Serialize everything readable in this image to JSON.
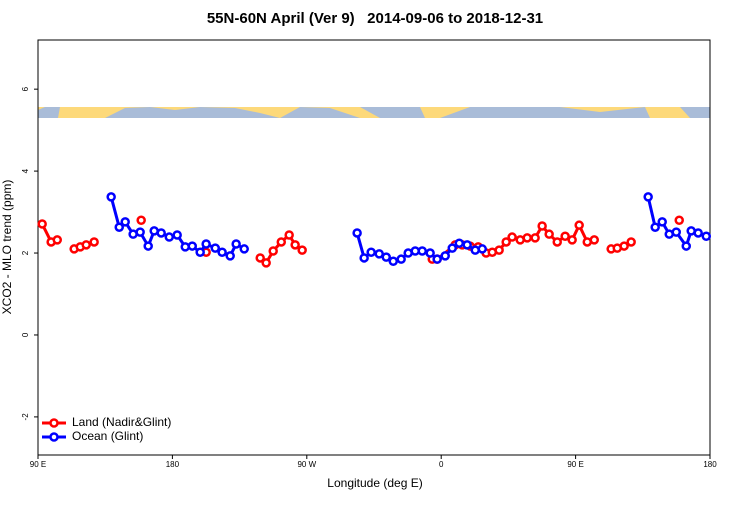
{
  "chart_data": {
    "type": "line",
    "title": "55N-60N April (Ver 9)   2014-09-06 to 2018-12-31",
    "x_label": "Longitude (deg E)",
    "y_label": "XCO2 - MLO trend (ppm)",
    "xlim": [
      -270,
      180
    ],
    "xticks": [
      {
        "value": -270,
        "label": "90 E"
      },
      {
        "value": -180,
        "label": "180"
      },
      {
        "value": -90,
        "label": "90 W"
      },
      0,
      {
        "value": 90,
        "label": "90 E"
      },
      180
    ],
    "ylim": [
      -2.93,
      7.2
    ],
    "yticks": [
      -2,
      0,
      2,
      4,
      6
    ],
    "legend": "bottom-left",
    "series": [
      {
        "name": "Land (Nadir&Glint)",
        "color": "#ff0000",
        "x": [
          -267.2,
          -261.2,
          -257.1,
          null,
          -245.8,
          -241.7,
          -237.7,
          -232.4,
          null,
          -200.9,
          null,
          -157.4,
          null,
          -121.2,
          -117.2,
          -112.5,
          -107.1,
          -101.8,
          -97.8,
          -93.1,
          null,
          -6.0,
          -2.7,
          9.4,
          14.1,
          19.4,
          24.8,
          30.1,
          34.2,
          38.8,
          43.5,
          47.5,
          52.9,
          57.6,
          62.9,
          67.6,
          72.3,
          77.7,
          83.0,
          87.7,
          92.4,
          97.8,
          102.5,
          null,
          113.8,
          117.9,
          122.5,
          127.2,
          null,
          159.4
        ],
        "values": [
          2.71,
          2.27,
          2.32,
          null,
          2.1,
          2.15,
          2.2,
          2.27,
          null,
          2.8,
          null,
          2.02,
          null,
          1.88,
          1.76,
          2.05,
          2.27,
          2.44,
          2.2,
          2.07,
          null,
          1.85,
          1.85,
          2.2,
          2.2,
          2.17,
          2.15,
          2.0,
          2.02,
          2.07,
          2.27,
          2.39,
          2.32,
          2.37,
          2.37,
          2.66,
          2.46,
          2.27,
          2.41,
          2.32,
          2.68,
          2.27,
          2.32,
          null,
          2.1,
          2.12,
          2.17,
          2.27,
          null,
          2.8
        ]
      },
      {
        "name": "Ocean (Glint)",
        "color": "#0000ff",
        "x": [
          -221.0,
          -215.6,
          -211.6,
          -206.3,
          -201.6,
          -196.2,
          -192.2,
          -187.5,
          -182.1,
          -176.8,
          -171.4,
          -166.7,
          -161.4,
          -157.4,
          -151.3,
          -146.7,
          -141.3,
          -137.3,
          -131.9,
          null,
          -56.3,
          -51.6,
          -46.9,
          -41.5,
          -36.8,
          -32.1,
          -26.8,
          -22.1,
          -17.4,
          -12.7,
          -7.4,
          -2.7,
          2.7,
          7.4,
          12.1,
          17.4,
          22.8,
          27.5,
          null,
          138.6,
          143.3,
          148.0,
          152.7,
          157.4,
          164.1,
          167.4,
          172.1,
          177.5
        ],
        "values": [
          3.37,
          2.63,
          2.76,
          2.46,
          2.51,
          2.17,
          2.54,
          2.49,
          2.39,
          2.44,
          2.15,
          2.17,
          2.02,
          2.22,
          2.12,
          2.02,
          1.93,
          2.22,
          2.1,
          null,
          2.49,
          1.88,
          2.02,
          1.98,
          1.9,
          1.8,
          1.85,
          2.0,
          2.05,
          2.05,
          2.0,
          1.85,
          1.93,
          2.12,
          2.24,
          2.2,
          2.07,
          2.1,
          null,
          3.37,
          2.63,
          2.76,
          2.46,
          2.51,
          2.17,
          2.54,
          2.49,
          2.41
        ]
      }
    ]
  }
}
